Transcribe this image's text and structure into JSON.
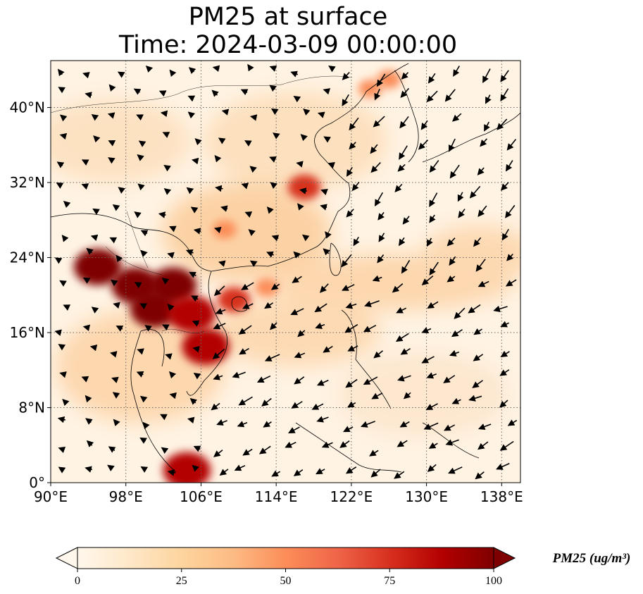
{
  "title": {
    "line1": "PM25 at surface",
    "line2": "Time: 2024-03-09 00:00:00"
  },
  "map": {
    "lon_range": [
      90,
      140
    ],
    "lat_range": [
      0,
      45
    ],
    "x_ticks": [
      {
        "value": 90,
        "label": "90°E"
      },
      {
        "value": 98,
        "label": "98°E"
      },
      {
        "value": 106,
        "label": "106°E"
      },
      {
        "value": 114,
        "label": "114°E"
      },
      {
        "value": 122,
        "label": "122°E"
      },
      {
        "value": 130,
        "label": "130°E"
      },
      {
        "value": 138,
        "label": "138°E"
      }
    ],
    "y_ticks": [
      {
        "value": 0,
        "label": "0°"
      },
      {
        "value": 8,
        "label": "8°N"
      },
      {
        "value": 16,
        "label": "16°N"
      },
      {
        "value": 24,
        "label": "24°N"
      },
      {
        "value": 32,
        "label": "32°N"
      },
      {
        "value": 40,
        "label": "40°N"
      }
    ],
    "gridlines": "dotted",
    "colormap": "OrRd",
    "hotspots": [
      {
        "lon": 95,
        "lat": 23,
        "level": 100
      },
      {
        "lon": 99,
        "lat": 21,
        "level": 100
      },
      {
        "lon": 103,
        "lat": 21,
        "level": 100
      },
      {
        "lon": 101,
        "lat": 18.5,
        "level": 95
      },
      {
        "lon": 105,
        "lat": 18,
        "level": 90
      },
      {
        "lon": 106.5,
        "lat": 14.5,
        "level": 90
      },
      {
        "lon": 109.5,
        "lat": 19.5,
        "level": 75
      },
      {
        "lon": 113,
        "lat": 20.8,
        "level": 55
      },
      {
        "lon": 117,
        "lat": 31.5,
        "level": 70
      },
      {
        "lon": 108.5,
        "lat": 27,
        "level": 50
      },
      {
        "lon": 126,
        "lat": 43,
        "level": 55
      },
      {
        "lon": 124,
        "lat": 42,
        "level": 50
      },
      {
        "lon": 104.5,
        "lat": 1.3,
        "level": 90
      }
    ]
  },
  "colorbar": {
    "min": 0,
    "max": 100,
    "extend": "both",
    "ticks": [
      {
        "value": 0,
        "label": "0"
      },
      {
        "value": 25,
        "label": "25"
      },
      {
        "value": 50,
        "label": "50"
      },
      {
        "value": 75,
        "label": "75"
      },
      {
        "value": 100,
        "label": "100"
      }
    ],
    "unit_label": "PM25 (ug/m³)",
    "colors": [
      "#fff7ec",
      "#fee8c8",
      "#fdd49e",
      "#fdbb84",
      "#fc8d59",
      "#ef6548",
      "#d7301f",
      "#b30000",
      "#7f0000"
    ]
  },
  "wind_field": {
    "sector_directions": [
      {
        "region": "north-china",
        "u": -1,
        "v": 0.6
      },
      {
        "region": "east-sea",
        "u": -1.2,
        "v": -1.6
      },
      {
        "region": "south-china-sea",
        "u": -1.6,
        "v": -0.9
      }
    ]
  }
}
